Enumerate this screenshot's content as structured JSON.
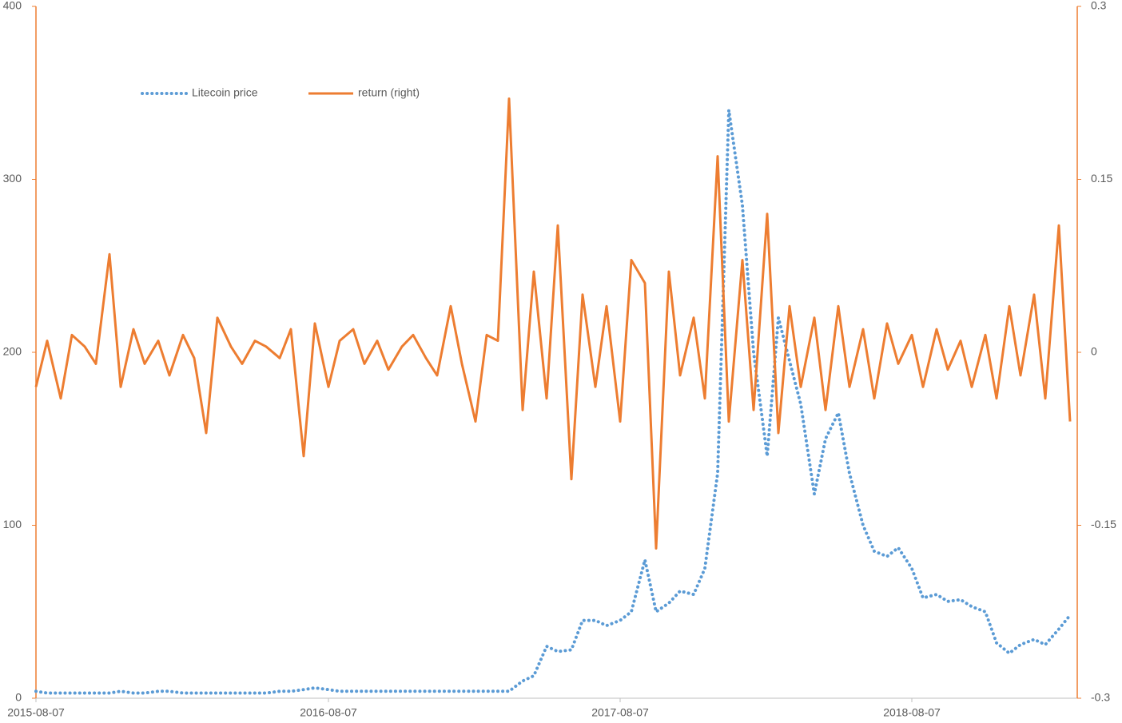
{
  "chart_data": {
    "type": "line",
    "x": [
      "2015-08-07",
      "2015-08-21",
      "2015-09-07",
      "2015-09-21",
      "2015-10-07",
      "2015-10-21",
      "2015-11-07",
      "2015-11-21",
      "2015-12-07",
      "2015-12-21",
      "2016-01-07",
      "2016-01-21",
      "2016-02-07",
      "2016-02-21",
      "2016-03-07",
      "2016-03-21",
      "2016-04-07",
      "2016-04-21",
      "2016-05-07",
      "2016-05-21",
      "2016-06-07",
      "2016-06-21",
      "2016-07-07",
      "2016-07-21",
      "2016-08-07",
      "2016-08-21",
      "2016-09-07",
      "2016-09-21",
      "2016-10-07",
      "2016-10-21",
      "2016-11-07",
      "2016-11-21",
      "2016-12-07",
      "2016-12-21",
      "2017-01-07",
      "2017-01-21",
      "2017-02-07",
      "2017-02-21",
      "2017-03-07",
      "2017-03-21",
      "2017-04-07",
      "2017-04-21",
      "2017-05-07",
      "2017-05-21",
      "2017-06-07",
      "2017-06-21",
      "2017-07-07",
      "2017-07-21",
      "2017-08-07",
      "2017-08-21",
      "2017-09-07",
      "2017-09-21",
      "2017-10-07",
      "2017-10-21",
      "2017-11-07",
      "2017-11-21",
      "2017-12-07",
      "2017-12-21",
      "2018-01-07",
      "2018-01-21",
      "2018-02-07",
      "2018-02-21",
      "2018-03-07",
      "2018-03-21",
      "2018-04-07",
      "2018-04-21",
      "2018-05-07",
      "2018-05-21",
      "2018-06-07",
      "2018-06-21",
      "2018-07-07",
      "2018-07-21",
      "2018-08-07",
      "2018-08-21",
      "2018-09-07",
      "2018-09-21",
      "2018-10-07",
      "2018-10-21",
      "2018-11-07",
      "2018-11-21",
      "2018-12-07",
      "2018-12-21",
      "2019-01-07",
      "2019-01-21",
      "2019-02-07",
      "2019-02-21"
    ],
    "series": [
      {
        "name": "Litecoin price",
        "color": "#5b9bd5",
        "style": "dotted",
        "axis": "y",
        "values": [
          4,
          3,
          3,
          3,
          3,
          3,
          3,
          4,
          3,
          3,
          4,
          4,
          3,
          3,
          3,
          3,
          3,
          3,
          3,
          3,
          4,
          4,
          5,
          6,
          5,
          4,
          4,
          4,
          4,
          4,
          4,
          4,
          4,
          4,
          4,
          4,
          4,
          4,
          4,
          4,
          10,
          13,
          30,
          27,
          28,
          45,
          45,
          42,
          45,
          50,
          80,
          50,
          55,
          62,
          60,
          75,
          130,
          340,
          285,
          200,
          140,
          220,
          195,
          170,
          118,
          150,
          165,
          130,
          100,
          85,
          82,
          87,
          75,
          58,
          60,
          56,
          57,
          53,
          50,
          32,
          26,
          31,
          34,
          31,
          40,
          48
        ]
      },
      {
        "name": "return (right)",
        "color": "#ed7d31",
        "style": "solid",
        "axis": "y2",
        "values": [
          -0.03,
          0.01,
          -0.04,
          0.015,
          0.005,
          -0.01,
          0.085,
          -0.03,
          0.02,
          -0.01,
          0.01,
          -0.02,
          0.015,
          -0.005,
          -0.07,
          0.03,
          0.005,
          -0.01,
          0.01,
          0.005,
          -0.005,
          0.02,
          -0.09,
          0.025,
          -0.03,
          0.01,
          0.02,
          -0.01,
          0.01,
          -0.015,
          0.005,
          0.015,
          -0.005,
          -0.02,
          0.04,
          -0.01,
          -0.06,
          0.015,
          0.01,
          0.22,
          -0.05,
          0.07,
          -0.04,
          0.11,
          -0.11,
          0.05,
          -0.03,
          0.04,
          -0.06,
          0.08,
          0.06,
          -0.17,
          0.07,
          -0.02,
          0.03,
          -0.04,
          0.17,
          -0.06,
          0.08,
          -0.05,
          0.12,
          -0.07,
          0.04,
          -0.03,
          0.03,
          -0.05,
          0.04,
          -0.03,
          0.02,
          -0.04,
          0.025,
          -0.01,
          0.015,
          -0.03,
          0.02,
          -0.015,
          0.01,
          -0.03,
          0.015,
          -0.04,
          0.04,
          -0.02,
          0.05,
          -0.04,
          0.11,
          -0.06
        ]
      }
    ],
    "xlim": [
      "2015-08-07",
      "2019-03-02"
    ],
    "xticks": [
      "2015-08-07",
      "2016-08-07",
      "2017-08-07",
      "2018-08-07"
    ],
    "ylim": [
      0,
      400
    ],
    "yticks": [
      0,
      100,
      200,
      300,
      400
    ],
    "y2lim": [
      -0.3,
      0.3
    ],
    "y2ticks": [
      -0.3,
      -0.15,
      0,
      0.15,
      0.3
    ],
    "axis_color": "#ed7d31"
  }
}
